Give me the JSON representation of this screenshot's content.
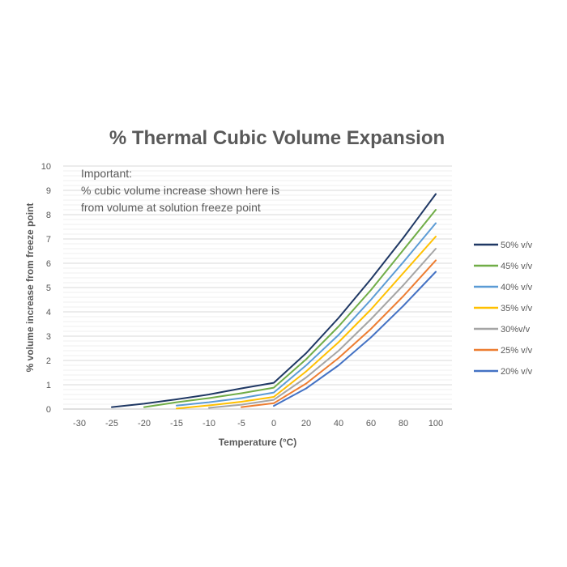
{
  "chart_data": {
    "type": "line",
    "title": "% Thermal Cubic Volume Expansion",
    "xlabel": "Temperature (°C)",
    "ylabel": "% volume increase from freeze point",
    "x_ticks": [
      "-30",
      "-25",
      "-20",
      "-15",
      "-10",
      "-5",
      "0",
      "20",
      "40",
      "60",
      "80",
      "100"
    ],
    "ylim": [
      0,
      10
    ],
    "y_ticks": [
      "0",
      "1",
      "2",
      "3",
      "4",
      "5",
      "6",
      "7",
      "8",
      "9",
      "10"
    ],
    "grid": "horizontal",
    "legend_position": "right",
    "annotation": [
      "Important:",
      "% cubic volume increase shown here is",
      "from volume at solution freeze point"
    ],
    "series": [
      {
        "name": "50% v/v",
        "color": "#1f3864",
        "points": [
          [
            -25,
            0.08
          ],
          [
            -20,
            0.22
          ],
          [
            -15,
            0.4
          ],
          [
            -10,
            0.6
          ],
          [
            -5,
            0.85
          ],
          [
            0,
            1.08
          ],
          [
            20,
            2.3
          ],
          [
            40,
            3.75
          ],
          [
            60,
            5.35
          ],
          [
            80,
            7.05
          ],
          [
            100,
            8.85
          ]
        ]
      },
      {
        "name": "45% v/v",
        "color": "#70ad47",
        "points": [
          [
            -20,
            0.08
          ],
          [
            -15,
            0.28
          ],
          [
            -10,
            0.45
          ],
          [
            -5,
            0.65
          ],
          [
            0,
            0.88
          ],
          [
            20,
            2.05
          ],
          [
            40,
            3.4
          ],
          [
            60,
            4.9
          ],
          [
            80,
            6.55
          ],
          [
            100,
            8.2
          ]
        ]
      },
      {
        "name": "40% v/v",
        "color": "#5b9bd5",
        "points": [
          [
            -15,
            0.14
          ],
          [
            -10,
            0.28
          ],
          [
            -5,
            0.45
          ],
          [
            0,
            0.68
          ],
          [
            20,
            1.8
          ],
          [
            40,
            3.05
          ],
          [
            60,
            4.5
          ],
          [
            80,
            6.05
          ],
          [
            100,
            7.65
          ]
        ]
      },
      {
        "name": "35% v/v",
        "color": "#ffc000",
        "points": [
          [
            -15,
            0.02
          ],
          [
            -10,
            0.15
          ],
          [
            -5,
            0.3
          ],
          [
            0,
            0.5
          ],
          [
            20,
            1.55
          ],
          [
            40,
            2.75
          ],
          [
            60,
            4.1
          ],
          [
            80,
            5.6
          ],
          [
            100,
            7.1
          ]
        ]
      },
      {
        "name": "30%v/v",
        "color": "#a5a5a5",
        "points": [
          [
            -10,
            0.05
          ],
          [
            -5,
            0.18
          ],
          [
            0,
            0.38
          ],
          [
            20,
            1.3
          ],
          [
            40,
            2.4
          ],
          [
            60,
            3.7
          ],
          [
            80,
            5.1
          ],
          [
            100,
            6.6
          ]
        ]
      },
      {
        "name": "25% v/v",
        "color": "#ed7d31",
        "points": [
          [
            -5,
            0.08
          ],
          [
            0,
            0.24
          ],
          [
            20,
            1.05
          ],
          [
            40,
            2.1
          ],
          [
            60,
            3.3
          ],
          [
            80,
            4.65
          ],
          [
            100,
            6.12
          ]
        ]
      },
      {
        "name": "20% v/v",
        "color": "#4472c4",
        "points": [
          [
            0,
            0.13
          ],
          [
            20,
            0.85
          ],
          [
            40,
            1.8
          ],
          [
            60,
            2.95
          ],
          [
            80,
            4.25
          ],
          [
            100,
            5.65
          ]
        ]
      }
    ]
  }
}
